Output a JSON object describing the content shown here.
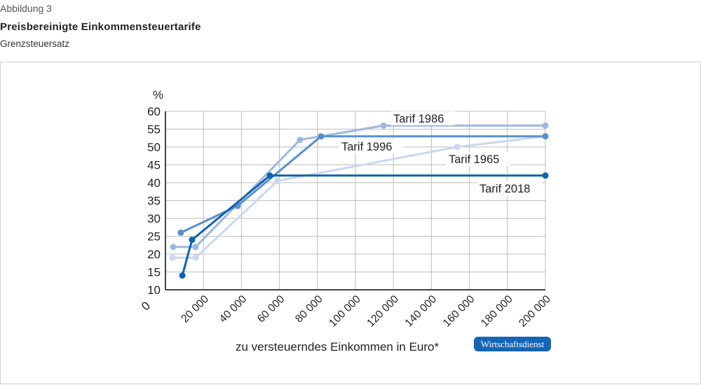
{
  "header": {
    "figure_label": "Abbildung 3",
    "title": "Preisbereinigte Einkommensteuertarife",
    "subtitle": "Grenzsteuersatz"
  },
  "source_badge": "Wirtschaftsdienst",
  "colors": {
    "tarif_1965": "#c9d8ef",
    "tarif_1986": "#9db8e0",
    "tarif_1996": "#5a8fcc",
    "tarif_2018": "#0f63ad",
    "grid": "#bdbdbd",
    "axis": "#444444",
    "badge": "#1565b5"
  },
  "chart_data": {
    "type": "line",
    "title": "Preisbereinigte Einkommensteuertarife",
    "subtitle": "Grenzsteuersatz",
    "xlabel": "zu versteuerndes Einkommen in Euro*",
    "ylabel": "%",
    "xlim": [
      0,
      200000
    ],
    "ylim": [
      10,
      60
    ],
    "x_ticks": [
      0,
      20000,
      40000,
      60000,
      80000,
      100000,
      120000,
      140000,
      160000,
      180000,
      200000
    ],
    "x_tick_labels": [
      "0",
      "20 000",
      "40 000",
      "60 000",
      "80 000",
      "100 000",
      "120 000",
      "140 000",
      "160 000",
      "180 000",
      "200 000"
    ],
    "y_ticks": [
      10,
      15,
      20,
      25,
      30,
      35,
      40,
      45,
      50,
      55,
      60
    ],
    "y_tick_labels": [
      "10",
      "15",
      "20",
      "25",
      "30",
      "35",
      "40",
      "45",
      "50",
      "55",
      "60"
    ],
    "y_axis_origin_label": "0",
    "grid": true,
    "series": [
      {
        "name": "Tarif 1965",
        "points": [
          [
            3700,
            19
          ],
          [
            15900,
            19
          ],
          [
            59000,
            40.5
          ],
          [
            153500,
            50
          ],
          [
            200000,
            53
          ]
        ]
      },
      {
        "name": "Tarif 1986",
        "points": [
          [
            4100,
            22
          ],
          [
            15900,
            22
          ],
          [
            70800,
            52
          ],
          [
            114800,
            56
          ],
          [
            200000,
            56
          ]
        ]
      },
      {
        "name": "Tarif 1996",
        "points": [
          [
            8100,
            26
          ],
          [
            38000,
            33.5
          ],
          [
            81900,
            53
          ],
          [
            200000,
            53
          ]
        ]
      },
      {
        "name": "Tarif 2018",
        "points": [
          [
            8900,
            14
          ],
          [
            14000,
            24
          ],
          [
            55000,
            42
          ],
          [
            200000,
            42
          ]
        ]
      }
    ],
    "annotations": [
      {
        "text": "Tarif 1986",
        "series": "Tarif 1986"
      },
      {
        "text": "Tarif 1996",
        "series": "Tarif 1996"
      },
      {
        "text": "Tarif 1965",
        "series": "Tarif 1965"
      },
      {
        "text": "Tarif 2018",
        "series": "Tarif 2018"
      }
    ]
  }
}
